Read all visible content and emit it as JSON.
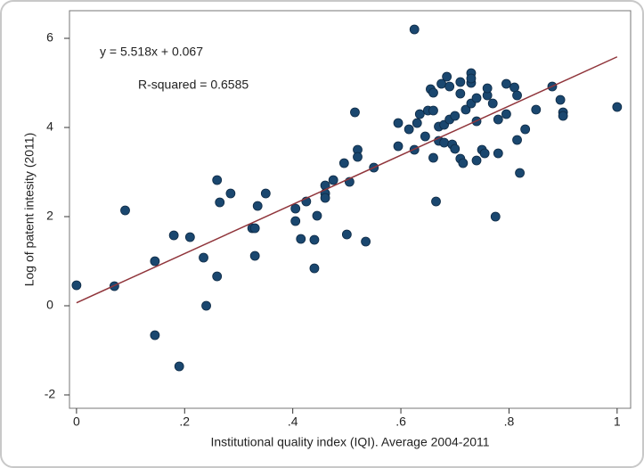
{
  "chart_data": {
    "type": "scatter",
    "x_label": "Institutional quality index (IQI). Average 2004-2011",
    "y_label": "Log of patent intesity (2011)",
    "annotations": [
      "y = 5.518x + 0.067",
      "R-squared = 0.6585"
    ],
    "xlim": [
      -0.013,
      1.025
    ],
    "ylim": [
      -2.3,
      6.62
    ],
    "xticks": [
      0,
      {
        "value": 0.2,
        "label": ".2"
      },
      {
        "value": 0.4,
        "label": ".4"
      },
      {
        "value": 0.6,
        "label": ".6"
      },
      {
        "value": 0.8,
        "label": ".8"
      },
      1
    ],
    "yticks": [
      -2,
      0,
      2,
      4,
      6
    ],
    "color": "#1a476f",
    "x": [
      0.0,
      0.07,
      0.09,
      0.145,
      0.145,
      0.18,
      0.19,
      0.21,
      0.235,
      0.24,
      0.26,
      0.26,
      0.265,
      0.285,
      0.325,
      0.33,
      0.33,
      0.335,
      0.35,
      0.405,
      0.405,
      0.415,
      0.425,
      0.44,
      0.44,
      0.445,
      0.46,
      0.46,
      0.46,
      0.475,
      0.495,
      0.5,
      0.505,
      0.515,
      0.52,
      0.52,
      0.535,
      0.55,
      0.595,
      0.595,
      0.615,
      0.625,
      0.625,
      0.63,
      0.635,
      0.645,
      0.65,
      0.655,
      0.66,
      0.66,
      0.66,
      0.665,
      0.67,
      0.67,
      0.675,
      0.68,
      0.68,
      0.685,
      0.69,
      0.69,
      0.695,
      0.7,
      0.7,
      0.71,
      0.71,
      0.71,
      0.715,
      0.72,
      0.73,
      0.73,
      0.73,
      0.73,
      0.74,
      0.74,
      0.74,
      0.75,
      0.755,
      0.76,
      0.76,
      0.77,
      0.775,
      0.78,
      0.78,
      0.795,
      0.795,
      0.81,
      0.815,
      0.815,
      0.82,
      0.83,
      0.85,
      0.88,
      0.895,
      0.9,
      0.9,
      1.0
    ],
    "values": [
      0.46,
      0.44,
      2.14,
      1.0,
      -0.66,
      1.58,
      -1.36,
      1.54,
      1.08,
      0.0,
      0.66,
      2.82,
      2.32,
      2.52,
      1.74,
      1.74,
      1.12,
      2.24,
      2.52,
      2.18,
      1.9,
      1.5,
      2.34,
      1.48,
      0.84,
      2.02,
      2.7,
      2.52,
      2.42,
      2.82,
      3.2,
      1.6,
      2.78,
      4.34,
      3.5,
      3.34,
      1.44,
      3.1,
      4.1,
      3.58,
      3.96,
      6.2,
      3.5,
      4.1,
      4.3,
      3.8,
      4.38,
      4.86,
      4.78,
      4.38,
      3.32,
      2.34,
      4.02,
      3.7,
      4.98,
      4.06,
      3.66,
      5.14,
      4.92,
      4.18,
      3.62,
      4.26,
      3.52,
      4.76,
      3.3,
      5.02,
      3.2,
      4.4,
      5.0,
      5.22,
      5.1,
      4.54,
      4.66,
      3.26,
      4.14,
      3.5,
      3.42,
      4.72,
      4.88,
      4.54,
      2.0,
      3.42,
      4.18,
      4.98,
      4.3,
      4.9,
      4.72,
      3.72,
      2.98,
      3.96,
      4.4,
      4.92,
      4.62,
      4.34,
      4.26,
      4.46
    ],
    "fit_line": {
      "color": "#90353b",
      "x": [
        0,
        1
      ],
      "values": [
        0.067,
        5.585
      ]
    }
  }
}
